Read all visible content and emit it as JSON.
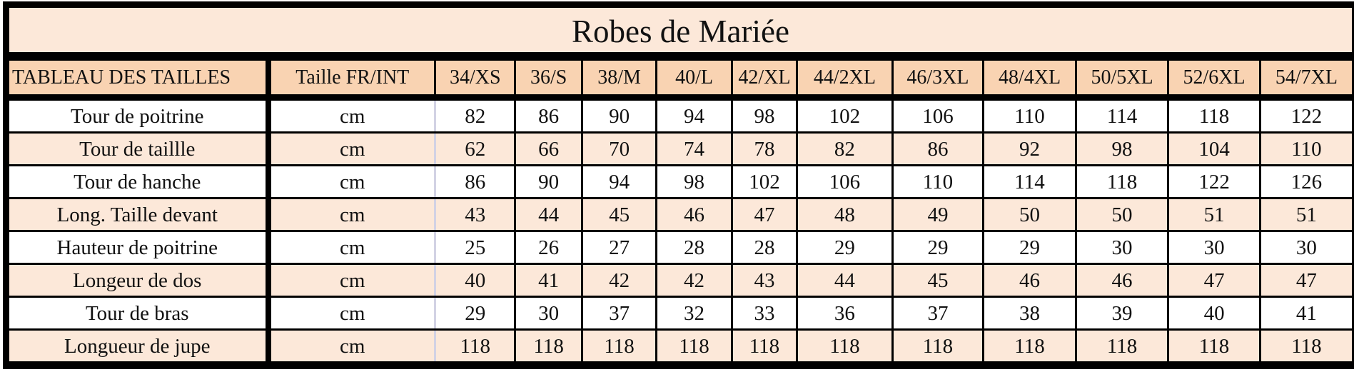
{
  "title": "Robes de Mariée",
  "header": {
    "label": "TABLEAU DES TAILLES",
    "unit_header": "Taille FR/INT",
    "sizes": [
      "34/XS",
      "36/S",
      "38/M",
      "40/L",
      "42/XL",
      "44/2XL",
      "46/3XL",
      "48/4XL",
      "50/5XL",
      "52/6XL",
      "54/7XL"
    ]
  },
  "rows": [
    {
      "label": "Tour de poitrine",
      "unit": "cm",
      "values": [
        "82",
        "86",
        "90",
        "94",
        "98",
        "102",
        "106",
        "110",
        "114",
        "118",
        "122"
      ]
    },
    {
      "label": "Tour de taillle",
      "unit": "cm",
      "values": [
        "62",
        "66",
        "70",
        "74",
        "78",
        "82",
        "86",
        "92",
        "98",
        "104",
        "110"
      ]
    },
    {
      "label": "Tour de hanche",
      "unit": "cm",
      "values": [
        "86",
        "90",
        "94",
        "98",
        "102",
        "106",
        "110",
        "114",
        "118",
        "122",
        "126"
      ]
    },
    {
      "label": "Long. Taille devant",
      "unit": "cm",
      "values": [
        "43",
        "44",
        "45",
        "46",
        "47",
        "48",
        "49",
        "50",
        "50",
        "51",
        "51"
      ]
    },
    {
      "label": "Hauteur de poitrine",
      "unit": "cm",
      "values": [
        "25",
        "26",
        "27",
        "28",
        "28",
        "29",
        "29",
        "29",
        "30",
        "30",
        "30"
      ]
    },
    {
      "label": "Longeur de dos",
      "unit": "cm",
      "values": [
        "40",
        "41",
        "42",
        "42",
        "43",
        "44",
        "45",
        "46",
        "46",
        "47",
        "47"
      ]
    },
    {
      "label": "Tour de bras",
      "unit": "cm",
      "values": [
        "29",
        "30",
        "37",
        "32",
        "33",
        "36",
        "37",
        "38",
        "39",
        "40",
        "41"
      ]
    },
    {
      "label": "Longueur de jupe",
      "unit": "cm",
      "values": [
        "118",
        "118",
        "118",
        "118",
        "118",
        "118",
        "118",
        "118",
        "118",
        "118",
        "118"
      ]
    }
  ],
  "colors": {
    "header_bg": "#f9d3b2",
    "alt_row_bg": "#fce8d9",
    "border": "#000000"
  }
}
